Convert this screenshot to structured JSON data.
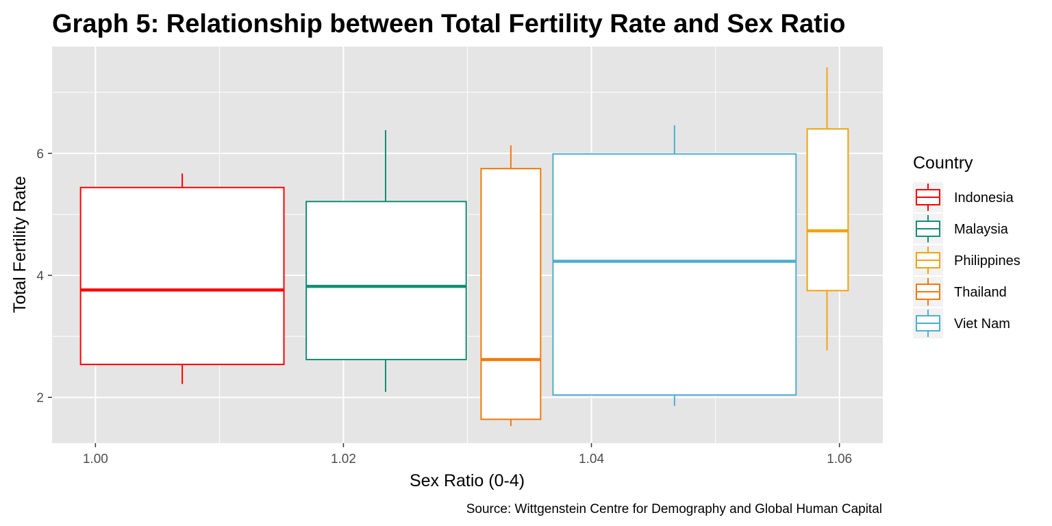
{
  "chart_data": {
    "type": "boxplot",
    "title": "Graph 5: Relationship between Total Fertility Rate and Sex Ratio",
    "xlabel": "Sex Ratio (0-4)",
    "ylabel": "Total Fertility Rate",
    "caption": "Source: Wittgenstein Centre for Demography and Global Human Capital",
    "legend_title": "Country",
    "legend_position": "right",
    "grid": true,
    "xlim": [
      0.9965,
      1.0635
    ],
    "ylim": [
      1.25,
      7.75
    ],
    "x_ticks": [
      1.0,
      1.02,
      1.04,
      1.06
    ],
    "x_tick_labels": [
      "1.00",
      "1.02",
      "1.04",
      "1.06"
    ],
    "y_ticks": [
      2,
      4,
      6
    ],
    "y_tick_labels": [
      "2",
      "4",
      "6"
    ],
    "series": [
      {
        "name": "Indonesia",
        "color": "#ff0000",
        "x_min": 0.9988,
        "x_max": 1.0152,
        "x_center": 1.007,
        "whisker_low": 2.22,
        "q1": 2.54,
        "median": 3.76,
        "q3": 5.44,
        "whisker_high": 5.67
      },
      {
        "name": "Malaysia",
        "color": "#138d75",
        "x_min": 1.017,
        "x_max": 1.0299,
        "x_center": 1.0234,
        "whisker_low": 2.09,
        "q1": 2.62,
        "median": 3.82,
        "q3": 5.21,
        "whisker_high": 6.38
      },
      {
        "name": "Thailand",
        "color": "#f27907",
        "x_min": 1.0311,
        "x_max": 1.0359,
        "x_center": 1.0335,
        "whisker_low": 1.53,
        "q1": 1.64,
        "median": 2.62,
        "q3": 5.75,
        "whisker_high": 6.13
      },
      {
        "name": "Viet Nam",
        "color": "#4fadd0",
        "x_min": 1.0369,
        "x_max": 1.0565,
        "x_center": 1.0467,
        "whisker_low": 1.86,
        "q1": 2.04,
        "median": 4.23,
        "q3": 5.99,
        "whisker_high": 6.46
      },
      {
        "name": "Philippines",
        "color": "#f2a20e",
        "x_min": 1.0574,
        "x_max": 1.0607,
        "x_center": 1.059,
        "whisker_low": 2.77,
        "q1": 3.75,
        "median": 4.73,
        "q3": 6.4,
        "whisker_high": 7.41
      }
    ],
    "legend_order": [
      "Indonesia",
      "Malaysia",
      "Philippines",
      "Thailand",
      "Viet Nam"
    ],
    "colors": {
      "panel_background": "#e5e5e5",
      "grid": "#ffffff",
      "box_fill": "#ffffff",
      "legend_key_background": "#f2f2f2"
    }
  }
}
